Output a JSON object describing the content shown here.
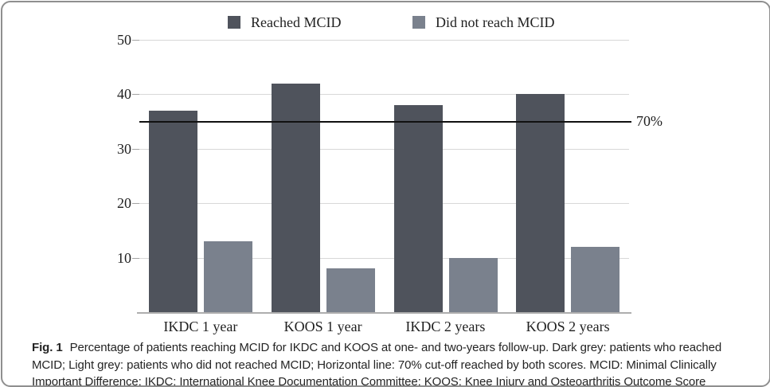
{
  "figure": {
    "caption_label": "Fig. 1",
    "caption_text": "Percentage of patients reaching MCID for IKDC and KOOS at one- and two-years follow-up. Dark grey: patients who reached MCID; Light grey: patients who did not reached MCID; Horizontal line: 70% cut-off reached by both scores. MCID: Minimal Clinically Important Difference; IKDC: International Knee Documentation Committee; KOOS: Knee Injury and Osteoarthritis Outcome Score"
  },
  "legend": {
    "items": [
      {
        "label": "Reached MCID",
        "color": "#4f535c"
      },
      {
        "label": "Did not reach MCID",
        "color": "#7a818d"
      }
    ]
  },
  "chart_data": {
    "type": "bar",
    "title": "",
    "xlabel": "",
    "ylabel": "",
    "categories": [
      "IKDC 1 year",
      "KOOS 1 year",
      "IKDC 2 years",
      "KOOS 2 years"
    ],
    "series": [
      {
        "name": "Reached MCID",
        "color": "#4f535c",
        "values": [
          37,
          42,
          38,
          40
        ]
      },
      {
        "name": "Did not reach MCID",
        "color": "#7a818d",
        "values": [
          13,
          8,
          10,
          12
        ]
      }
    ],
    "ylim": [
      0,
      50
    ],
    "yticks": [
      10,
      20,
      30,
      40,
      50
    ],
    "grid": true,
    "legend_position": "top",
    "cutoff_line": {
      "value": 35,
      "label": "70%",
      "color": "#111111"
    }
  }
}
